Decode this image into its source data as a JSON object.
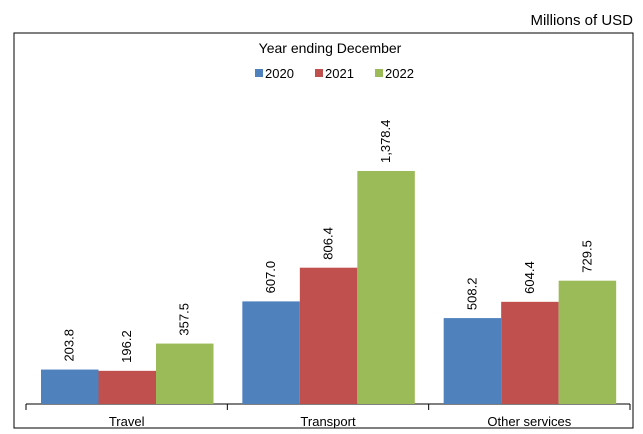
{
  "chart_data": {
    "type": "bar",
    "unit_label": "Millions of USD",
    "legend_title": "Year ending December",
    "categories": [
      "Travel",
      "Transport",
      "Other services"
    ],
    "series": [
      {
        "name": "2020",
        "color": "#4f81bd",
        "values": [
          203.8,
          607.0,
          508.2
        ],
        "value_labels": [
          "203.8",
          "607.0",
          "508.2"
        ]
      },
      {
        "name": "2021",
        "color": "#c0504d",
        "values": [
          196.2,
          806.4,
          604.4
        ],
        "value_labels": [
          "196.2",
          "806.4",
          "604.4"
        ]
      },
      {
        "name": "2022",
        "color": "#9bbb59",
        "values": [
          357.5,
          1378.4,
          729.5
        ],
        "value_labels": [
          "357.5",
          "1,378.4",
          "729.5"
        ]
      }
    ]
  }
}
